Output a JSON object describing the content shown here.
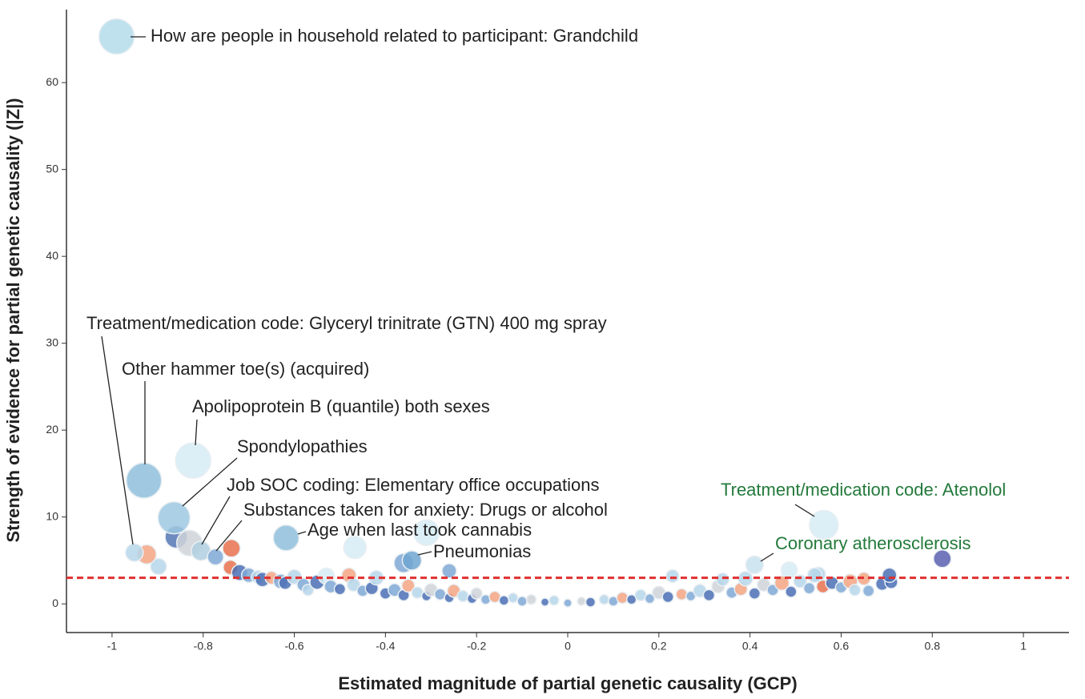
{
  "chart_data": {
    "type": "scatter",
    "xlabel": "Estimated magnitude of partial genetic causality (GCP)",
    "ylabel": "Strength of evidence for partial genetic causality (|Z|)",
    "xlim": [
      -1.1,
      1.1
    ],
    "ylim": [
      -3.3,
      68.4
    ],
    "xticks": [
      -1,
      -0.8,
      -0.6,
      -0.4,
      -0.2,
      0,
      0.2,
      0.4,
      0.6,
      0.8,
      1
    ],
    "yticks": [
      0,
      10,
      20,
      30,
      40,
      50,
      60
    ],
    "threshold": 3,
    "threshold_color": "#e03030",
    "x": [
      -0.74,
      -0.72,
      -0.7,
      -0.68,
      -0.67,
      -0.65,
      -0.63,
      -0.62,
      -0.6,
      -0.58,
      -0.57,
      -0.55,
      -0.53,
      -0.52,
      -0.5,
      -0.48,
      -0.47,
      -0.45,
      -0.43,
      -0.42,
      -0.4,
      -0.38,
      -0.36,
      -0.35,
      -0.33,
      -0.31,
      -0.3,
      -0.28,
      -0.26,
      -0.25,
      -0.23,
      -0.21,
      -0.2,
      -0.18,
      -0.16,
      -0.14,
      -0.12,
      -0.1,
      -0.08,
      -0.05,
      -0.03,
      0,
      0.03,
      0.05,
      0.08,
      0.1,
      0.12,
      0.14,
      0.16,
      0.18,
      0.2,
      0.22,
      0.23,
      0.25,
      0.27,
      0.29,
      0.31,
      0.33,
      0.34,
      0.36,
      0.38,
      0.39,
      0.41,
      0.43,
      0.45,
      0.47,
      0.49,
      0.51,
      0.53,
      0.55,
      0.56,
      0.58,
      0.6,
      0.62,
      0.63,
      0.65,
      0.66,
      0.69,
      0.71,
      0.822,
      -0.898,
      -0.924,
      -0.467,
      -0.31,
      -0.738,
      -0.859,
      -0.83,
      -0.26,
      0.486,
      0.542,
      0.706,
      -0.36,
      -0.99,
      -0.951,
      -0.93,
      -0.822,
      -0.864,
      -0.805,
      -0.773,
      -0.618,
      -0.342,
      0.562,
      0.41
    ],
    "values": [
      4.2,
      3.6,
      3.3,
      3.1,
      2.8,
      3.0,
      2.6,
      2.4,
      3.1,
      2.2,
      1.6,
      2.5,
      3.2,
      2.0,
      1.7,
      3.3,
      2.2,
      1.5,
      1.8,
      3.0,
      1.2,
      1.6,
      1.0,
      2.1,
      1.3,
      0.9,
      1.6,
      1.1,
      0.7,
      1.5,
      0.9,
      0.6,
      1.2,
      0.5,
      0.8,
      0.4,
      0.7,
      0.3,
      0.5,
      0.2,
      0.4,
      0.1,
      0.3,
      0.2,
      0.5,
      0.3,
      0.7,
      0.5,
      1.0,
      0.6,
      1.3,
      0.8,
      3.2,
      1.1,
      0.9,
      1.5,
      1.0,
      2.0,
      2.8,
      1.3,
      1.7,
      2.9,
      1.2,
      2.2,
      1.6,
      2.4,
      1.4,
      2.6,
      1.8,
      3.4,
      2.0,
      2.4,
      1.9,
      2.6,
      1.6,
      2.9,
      1.5,
      2.3,
      2.5,
      5.2,
      4.3,
      5.7,
      6.5,
      8.2,
      6.4,
      7.7,
      7.0,
      3.8,
      3.9,
      3.3,
      3.3,
      4.7,
      65.3,
      5.9,
      14.2,
      16.5,
      9.9,
      6.1,
      5.4,
      7.6,
      5.0,
      9.1,
      4.5
    ],
    "sizes": [
      9,
      10,
      9,
      8,
      9,
      8,
      9,
      8,
      9,
      8,
      7,
      9,
      10,
      8,
      7,
      9,
      8,
      7,
      8,
      9,
      7,
      8,
      7,
      8,
      7,
      6,
      8,
      7,
      6,
      8,
      7,
      6,
      7,
      6,
      7,
      6,
      6,
      6,
      6,
      5,
      6,
      5,
      5,
      6,
      6,
      6,
      7,
      6,
      7,
      6,
      8,
      7,
      8,
      7,
      6,
      8,
      7,
      8,
      8,
      7,
      8,
      9,
      7,
      8,
      7,
      9,
      7,
      8,
      7,
      9,
      8,
      8,
      7,
      9,
      7,
      8,
      7,
      8,
      8,
      11,
      10,
      12,
      14,
      16,
      11,
      14,
      16,
      9,
      10,
      9,
      9,
      12,
      22,
      11,
      22,
      22,
      20,
      12,
      10,
      16,
      12,
      18,
      11
    ],
    "colors": [
      "#e8714f",
      "#4a6fb5",
      "#7fa8d6",
      "#b5d6ea",
      "#4a6fb5",
      "#f4a582",
      "#7fa8d6",
      "#4a6fb5",
      "#b5d6ea",
      "#7fa8d6",
      "#b5d6ea",
      "#4a6fb5",
      "#d6ecf4",
      "#7fa8d6",
      "#4a6fb5",
      "#f4a582",
      "#b5d6ea",
      "#7fa8d6",
      "#4a6fb5",
      "#b5d6ea",
      "#4a6fb5",
      "#7fa8d6",
      "#4a6fb5",
      "#f4a582",
      "#b5d6ea",
      "#4a6fb5",
      "#cfd4d8",
      "#7fa8d6",
      "#4a6fb5",
      "#f4a582",
      "#b5d6ea",
      "#4a6fb5",
      "#cfd4d8",
      "#7fa8d6",
      "#f4a582",
      "#4a6fb5",
      "#b5d6ea",
      "#7fa8d6",
      "#cfd4d8",
      "#4a6fb5",
      "#b5d6ea",
      "#7fa8d6",
      "#cfd4d8",
      "#4a6fb5",
      "#b5d6ea",
      "#7fa8d6",
      "#f4a582",
      "#4a6fb5",
      "#b5d6ea",
      "#7fa8d6",
      "#cfd4d8",
      "#4a6fb5",
      "#b5d6ea",
      "#f4a582",
      "#7fa8d6",
      "#b5d6ea",
      "#4a6fb5",
      "#cfd4d8",
      "#b5d6ea",
      "#7fa8d6",
      "#f4a582",
      "#b5d6ea",
      "#4a6fb5",
      "#cfd4d8",
      "#7fa8d6",
      "#f4a582",
      "#4a6fb5",
      "#b5d6ea",
      "#7fa8d6",
      "#b5d6ea",
      "#e8714f",
      "#4a6fb5",
      "#7fa8d6",
      "#f4a582",
      "#b5d6ea",
      "#f4a582",
      "#7fa8d6",
      "#4a6fb5",
      "#4a6fb5",
      "#5b5fb0",
      "#b5d6ea",
      "#f4a582",
      "#d6ecf4",
      "#d6ecf4",
      "#e8714f",
      "#5577b5",
      "#cfd4d8",
      "#7fa8d6",
      "#d6ecf4",
      "#b5d6ea",
      "#4a6fb5",
      "#7fa8d6",
      "#b3dcea",
      "#b5d6ea",
      "#8fbfdc",
      "#d6ecf4",
      "#9ec8e0",
      "#b0cfe0",
      "#7fa8d6",
      "#8fc0dc",
      "#6fa6d0",
      "#d6ecf4",
      "#c8e2ef"
    ],
    "annotations": [
      {
        "text": "How are people in household related to participant: Grandchild",
        "color": "#222222"
      },
      {
        "text": "Treatment/medication code: Glyceryl trinitrate (GTN) 400 mg spray",
        "color": "#222222"
      },
      {
        "text": "Other hammer toe(s) (acquired)",
        "color": "#222222"
      },
      {
        "text": "Apolipoprotein B (quantile) both sexes",
        "color": "#222222"
      },
      {
        "text": "Spondylopathies",
        "color": "#222222"
      },
      {
        "text": "Job SOC coding: Elementary office occupations",
        "color": "#222222"
      },
      {
        "text": "Substances taken for anxiety: Drugs or alcohol",
        "color": "#222222"
      },
      {
        "text": "Age when last took cannabis",
        "color": "#222222"
      },
      {
        "text": "Pneumonias",
        "color": "#222222"
      },
      {
        "text": "Treatment/medication code: Atenolol",
        "color": "#237a3b"
      },
      {
        "text": "Coronary atherosclerosis",
        "color": "#237a3b"
      }
    ]
  }
}
